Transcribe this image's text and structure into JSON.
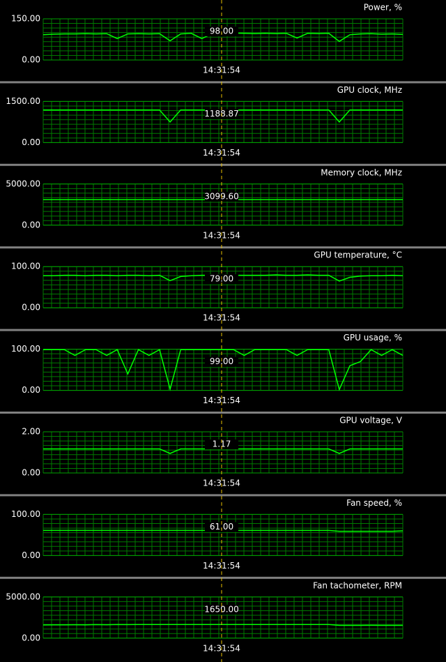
{
  "chart_data": [
    {
      "type": "line",
      "title": "Power, %",
      "ylim": [
        0,
        150
      ],
      "yticks": [
        {
          "value": 0,
          "label": "0.00"
        },
        {
          "value": 150,
          "label": "150.00"
        }
      ],
      "color": "#00ff00",
      "cursor": {
        "value": 98,
        "value_label": "98.00",
        "time": "14:31:54"
      },
      "values": [
        92,
        94,
        95,
        95,
        96,
        95,
        96,
        78,
        95,
        96,
        95,
        96,
        70,
        95,
        97,
        78,
        96,
        97,
        98,
        97,
        96,
        97,
        96,
        97,
        80,
        97,
        96,
        97,
        68,
        92,
        95,
        96,
        94,
        95,
        93
      ]
    },
    {
      "type": "line",
      "title": "GPU clock, MHz",
      "ylim": [
        0,
        1500
      ],
      "yticks": [
        {
          "value": 0,
          "label": "0.00"
        },
        {
          "value": 1500,
          "label": "1500.00"
        }
      ],
      "color": "#00ff00",
      "cursor": {
        "value": 1188.87,
        "value_label": "1188.87",
        "time": "14:31:54"
      },
      "values": [
        1190,
        1190,
        1190,
        1190,
        1190,
        1190,
        1190,
        1190,
        1190,
        1190,
        1190,
        1190,
        750,
        1190,
        1190,
        1190,
        1190,
        1190,
        1189,
        1190,
        1190,
        1190,
        1190,
        1190,
        1190,
        1190,
        1190,
        1190,
        750,
        1190,
        1190,
        1190,
        1190,
        1190,
        1190
      ]
    },
    {
      "type": "line",
      "title": "Memory clock, MHz",
      "ylim": [
        0,
        5000
      ],
      "yticks": [
        {
          "value": 0,
          "label": "0.00"
        },
        {
          "value": 5000,
          "label": "5000.00"
        }
      ],
      "color": "#00ff00",
      "cursor": {
        "value": 3099.6,
        "value_label": "3099.60",
        "time": "14:31:54"
      },
      "values": [
        3100,
        3100,
        3100,
        3100,
        3100,
        3100,
        3100,
        3100,
        3100,
        3100,
        3100,
        3100,
        3100,
        3100,
        3100,
        3100,
        3100,
        3100,
        3100,
        3100,
        3100,
        3100,
        3100,
        3100,
        3100,
        3100,
        3100,
        3100,
        3100,
        3100,
        3100,
        3100,
        3100,
        3100,
        3100
      ]
    },
    {
      "type": "line",
      "title": "GPU temperature, °C",
      "ylim": [
        0,
        100
      ],
      "yticks": [
        {
          "value": 0,
          "label": "0.00"
        },
        {
          "value": 100,
          "label": "100.00"
        }
      ],
      "color": "#00ff00",
      "cursor": {
        "value": 79,
        "value_label": "79.00",
        "time": "14:31:54"
      },
      "values": [
        78,
        78,
        79,
        79,
        78,
        79,
        79,
        78,
        79,
        79,
        78,
        79,
        66,
        76,
        78,
        79,
        79,
        80,
        79,
        79,
        79,
        79,
        80,
        79,
        79,
        80,
        79,
        79,
        65,
        74,
        77,
        78,
        78,
        79,
        78
      ]
    },
    {
      "type": "line",
      "title": "GPU usage, %",
      "ylim": [
        0,
        100
      ],
      "yticks": [
        {
          "value": 0,
          "label": "0.00"
        },
        {
          "value": 100,
          "label": "100.00"
        }
      ],
      "color": "#00ff00",
      "cursor": {
        "value": 99,
        "value_label": "99.00",
        "time": "14:31:54"
      },
      "values": [
        99,
        99,
        99,
        85,
        99,
        99,
        85,
        99,
        40,
        99,
        85,
        99,
        3,
        99,
        99,
        99,
        99,
        99,
        99,
        85,
        99,
        99,
        99,
        99,
        85,
        99,
        99,
        99,
        2,
        60,
        70,
        99,
        85,
        99,
        85
      ]
    },
    {
      "type": "line",
      "title": "GPU voltage, V",
      "ylim": [
        0,
        2
      ],
      "yticks": [
        {
          "value": 0,
          "label": "0.00"
        },
        {
          "value": 2,
          "label": "2.00"
        }
      ],
      "color": "#00ff00",
      "cursor": {
        "value": 1.17,
        "value_label": "1.17",
        "time": "14:31:54"
      },
      "values": [
        1.17,
        1.17,
        1.17,
        1.17,
        1.17,
        1.17,
        1.17,
        1.17,
        1.17,
        1.17,
        1.17,
        1.17,
        0.95,
        1.17,
        1.17,
        1.17,
        1.17,
        1.17,
        1.17,
        1.17,
        1.17,
        1.17,
        1.17,
        1.17,
        1.17,
        1.17,
        1.17,
        1.17,
        0.95,
        1.17,
        1.17,
        1.17,
        1.17,
        1.17,
        1.17
      ]
    },
    {
      "type": "line",
      "title": "Fan speed, %",
      "ylim": [
        0,
        100
      ],
      "yticks": [
        {
          "value": 0,
          "label": "0.00"
        },
        {
          "value": 100,
          "label": "100.00"
        }
      ],
      "color": "#00ff00",
      "cursor": {
        "value": 61,
        "value_label": "61.00",
        "time": "14:31:54"
      },
      "values": [
        61,
        61,
        61,
        61,
        61,
        61,
        61,
        61,
        61,
        61,
        61,
        61,
        61,
        61,
        61,
        61,
        61,
        61,
        61,
        61,
        61,
        61,
        61,
        61,
        61,
        61,
        61,
        61,
        59,
        59,
        59,
        59,
        59,
        59,
        60
      ]
    },
    {
      "type": "line",
      "title": "Fan tachometer, RPM",
      "ylim": [
        0,
        5000
      ],
      "yticks": [
        {
          "value": 0,
          "label": "0.00"
        },
        {
          "value": 5000,
          "label": "5000.00"
        }
      ],
      "color": "#00ff00",
      "cursor": {
        "value": 1650,
        "value_label": "1650.00",
        "time": "14:31:54"
      },
      "values": [
        1600,
        1620,
        1610,
        1630,
        1620,
        1640,
        1630,
        1650,
        1640,
        1650,
        1650,
        1650,
        1650,
        1650,
        1650,
        1650,
        1650,
        1650,
        1650,
        1650,
        1650,
        1650,
        1650,
        1650,
        1650,
        1650,
        1650,
        1650,
        1550,
        1550,
        1550,
        1560,
        1550,
        1550,
        1550
      ]
    }
  ]
}
